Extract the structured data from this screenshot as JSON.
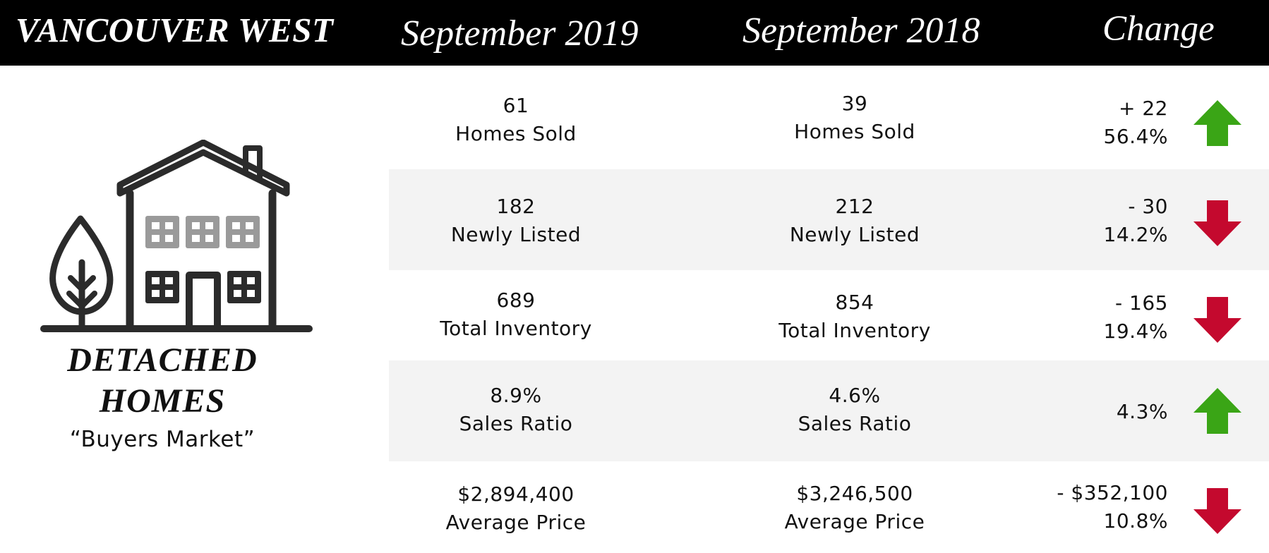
{
  "header": {
    "region": "VANCOUVER WEST",
    "col_current": "September 2019",
    "col_previous": "September 2018",
    "col_change": "Change"
  },
  "left_panel": {
    "icon": "house-tree-icon",
    "title_line1": "DETACHED",
    "title_line2": "HOMES",
    "subtitle": "“Buyers Market”"
  },
  "colors": {
    "header_bg": "#000000",
    "band_bg": "#f3f3f3",
    "up": "#3aa516",
    "down": "#c4092e",
    "window_gray": "#9a9a9a"
  },
  "rows": [
    {
      "current": "61",
      "previous": "39",
      "label": "Homes Sold",
      "change_abs": "+ 22",
      "change_pct": "56.4%",
      "direction": "up",
      "icon": "arrow-up-icon"
    },
    {
      "current": "182",
      "previous": "212",
      "label": "Newly Listed",
      "change_abs": "- 30",
      "change_pct": "14.2%",
      "direction": "down",
      "icon": "arrow-down-icon"
    },
    {
      "current": "689",
      "previous": "854",
      "label": "Total Inventory",
      "change_abs": "- 165",
      "change_pct": "19.4%",
      "direction": "down",
      "icon": "arrow-down-icon"
    },
    {
      "current": "8.9%",
      "previous": "4.6%",
      "label": "Sales Ratio",
      "change_abs": "",
      "change_pct": "4.3%",
      "direction": "up",
      "icon": "arrow-up-icon"
    },
    {
      "current": "$2,894,400",
      "previous": "$3,246,500",
      "label": "Average Price",
      "change_abs": "- $352,100",
      "change_pct": "10.8%",
      "direction": "down",
      "icon": "arrow-down-icon"
    }
  ]
}
